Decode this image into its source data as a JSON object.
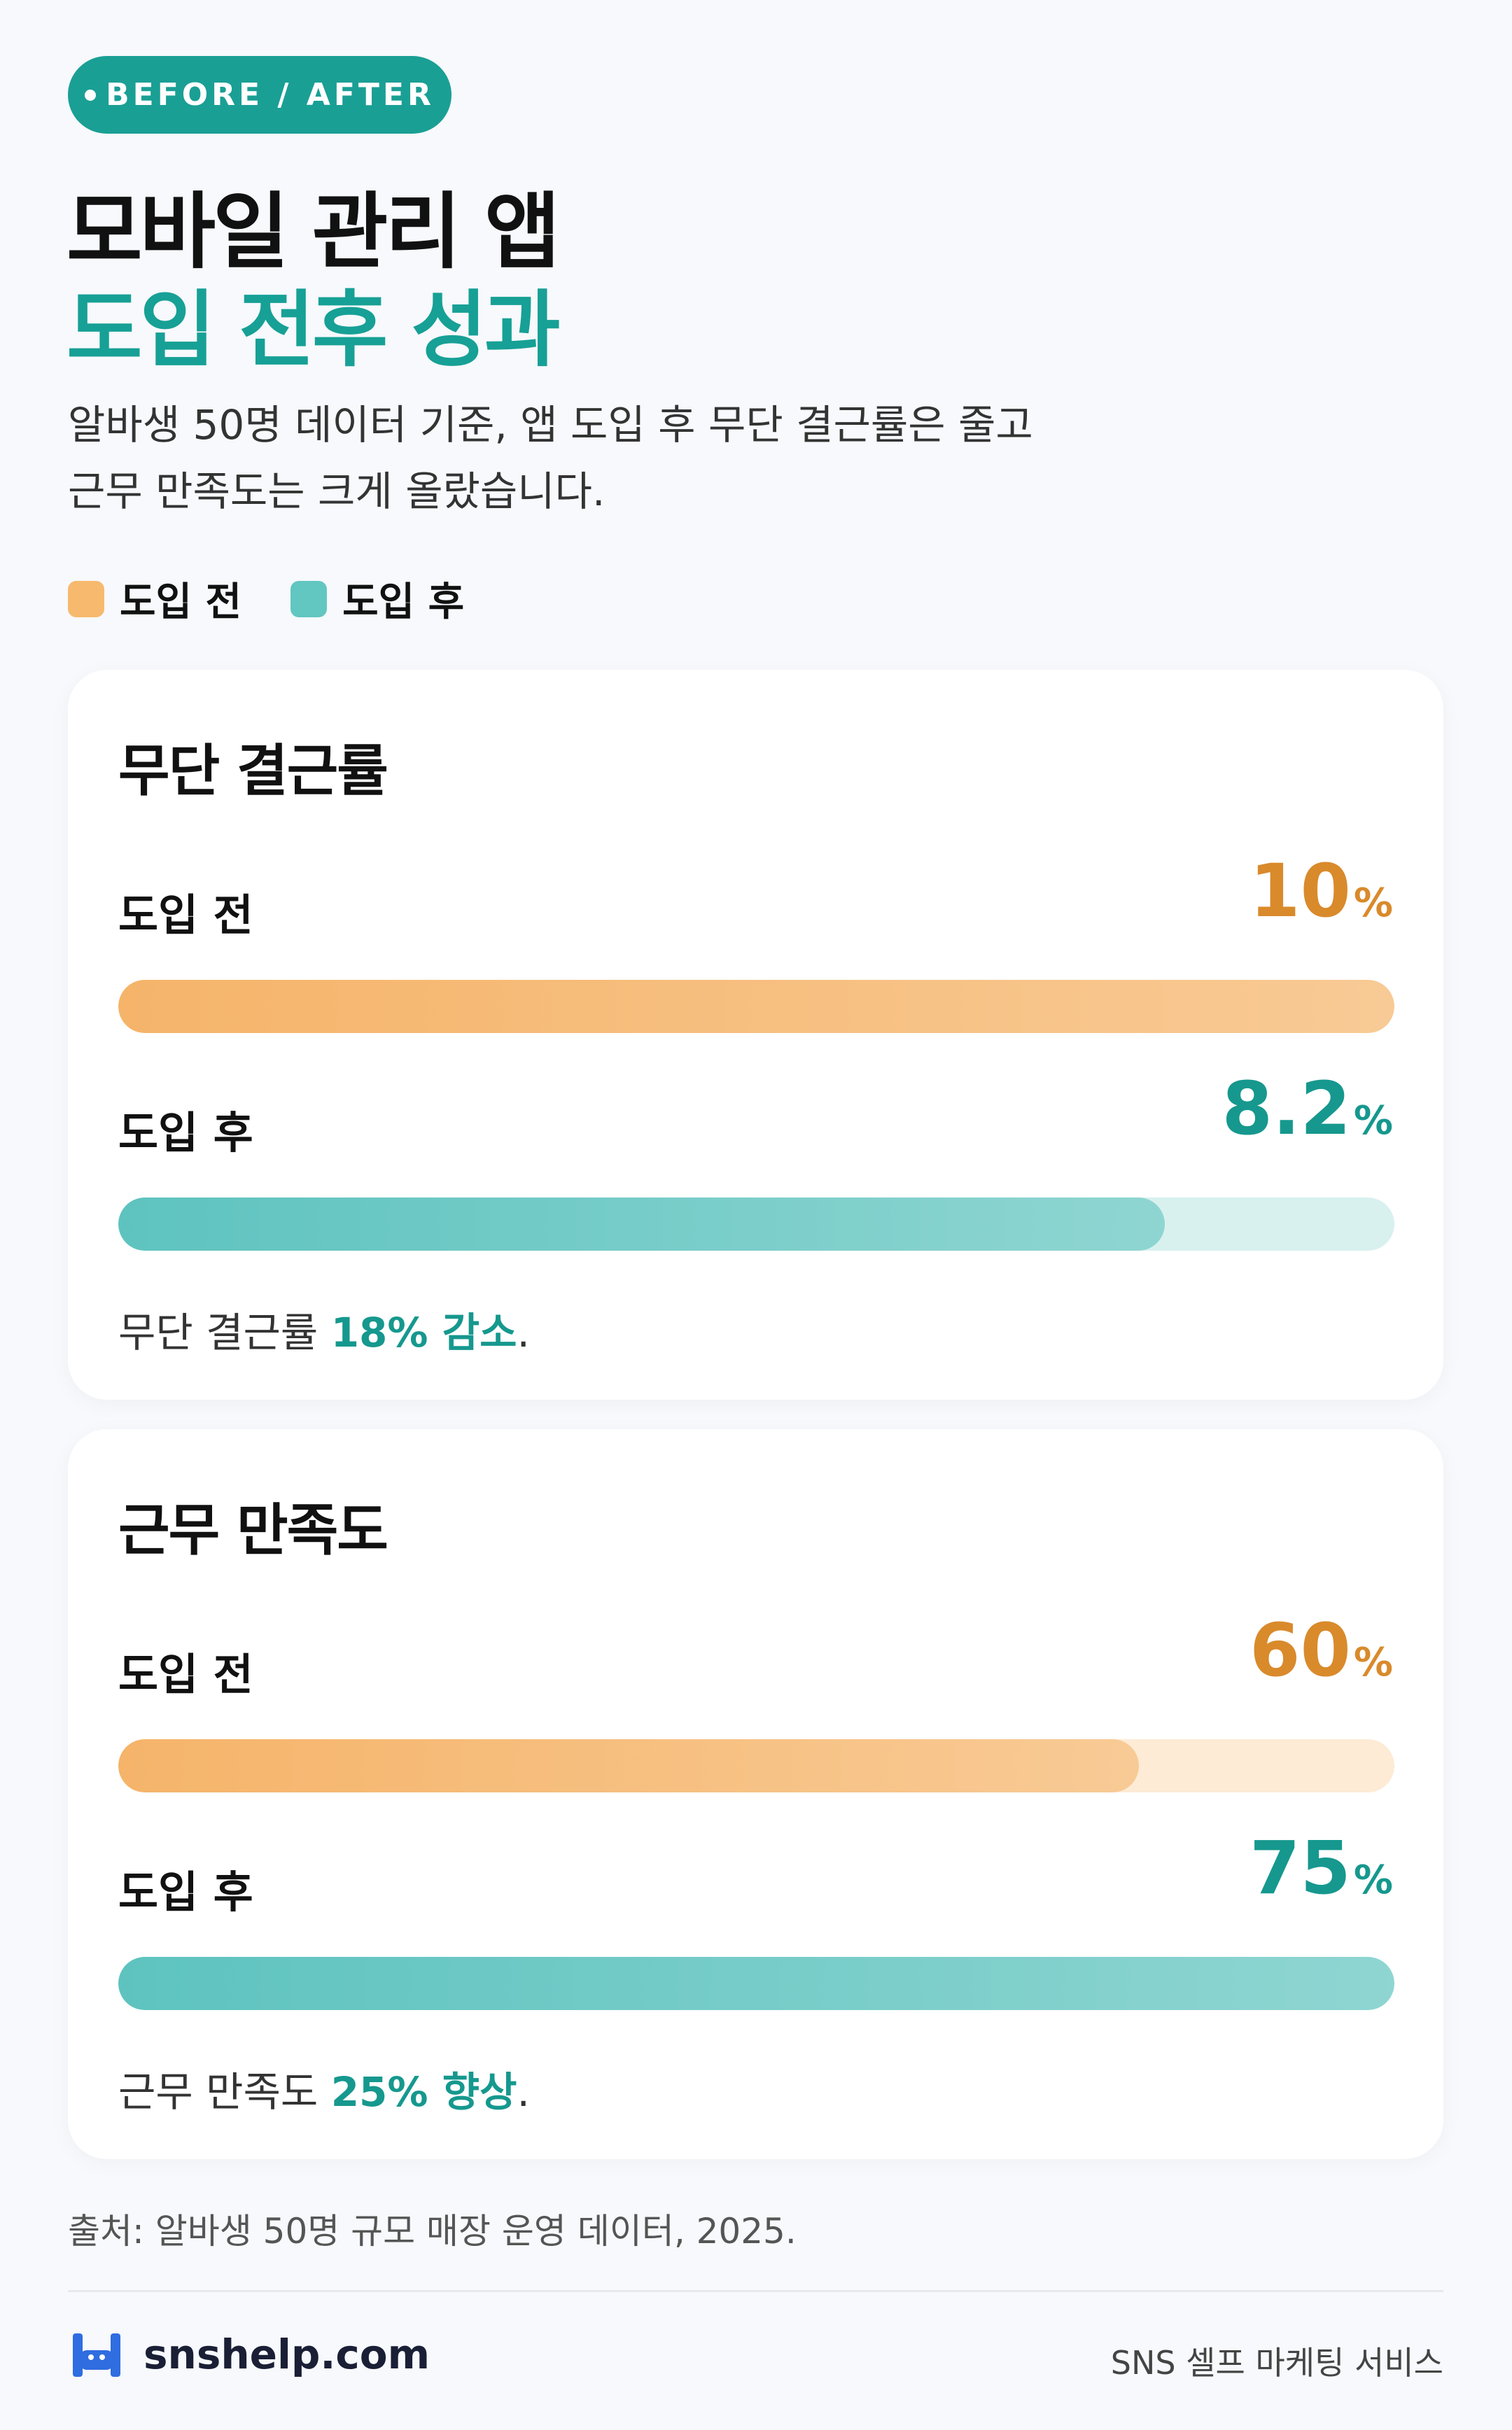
{
  "badge": "BEFORE / AFTER",
  "title_lines": [
    "모바일 관리 앱",
    "도입 전후 성과"
  ],
  "subtitle_lines": [
    "알바생 50명 데이터 기준, 앱 도입 후 무단 결근률은 줄고",
    "근무 만족도는 크게 올랐습니다."
  ],
  "legend": [
    {
      "name": "도입 전",
      "color": "#f7b96e"
    },
    {
      "name": "도입 후",
      "color": "#62c6c1"
    }
  ],
  "chart_data": [
    {
      "type": "bar",
      "title": "무단 결근률",
      "categories": [
        "도입 전",
        "도입 후"
      ],
      "values": [
        10,
        8.2
      ],
      "unit": "%",
      "colors": [
        "#f5b46a",
        "#5ec3bf"
      ],
      "track_colors": [
        "#fdebd6",
        "#d8f1ee"
      ],
      "value_colors": [
        "#d98a2b",
        "#16988e"
      ],
      "note": [
        "무단 결근률 ",
        "18% 감소",
        "."
      ]
    },
    {
      "type": "bar",
      "title": "근무 만족도",
      "categories": [
        "도입 전",
        "도입 후"
      ],
      "values": [
        60,
        75
      ],
      "unit": "%",
      "colors": [
        "#f5b46a",
        "#5ec3bf"
      ],
      "track_colors": [
        "#fdebd6",
        "#d8f1ee"
      ],
      "value_colors": [
        "#d98a2b",
        "#16988e"
      ],
      "note": [
        "근무 만족도 ",
        "25% 향상",
        "."
      ]
    }
  ],
  "source": "출처: 알바생 50명 규모 매장 운영 데이터, 2025.",
  "footer": {
    "brand": "snshelp.com",
    "tagline": "SNS 셀프 마케팅 서비스"
  }
}
